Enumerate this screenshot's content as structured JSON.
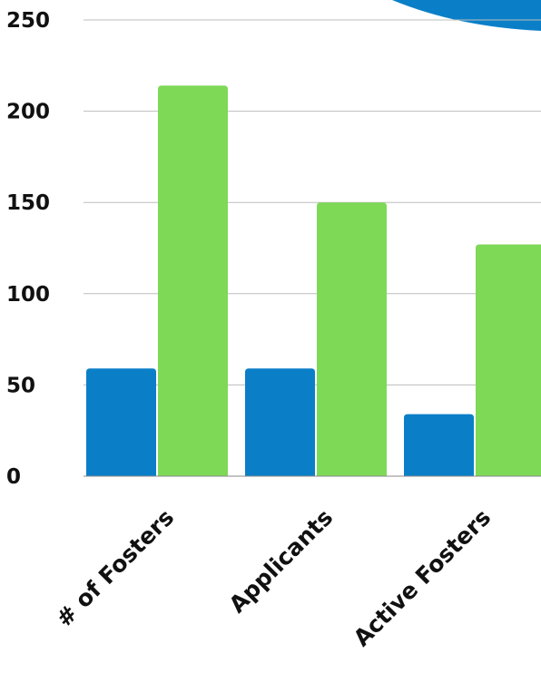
{
  "chart_data": {
    "type": "bar",
    "categories": [
      "# of Fosters",
      "Applicants",
      "Active Fosters"
    ],
    "series": [
      {
        "values": [
          59,
          59,
          34
        ],
        "color": "#0a7fc8"
      },
      {
        "values": [
          214,
          150,
          127
        ],
        "color": "#7ed957"
      }
    ],
    "ylim": [
      0,
      250
    ],
    "yticks": [
      "0",
      "50",
      "100",
      "150",
      "200",
      "250"
    ],
    "xlabel": "",
    "ylabel": "",
    "title": "",
    "grid": true,
    "legend": "none",
    "decoration_color": "#0a7fc8"
  }
}
